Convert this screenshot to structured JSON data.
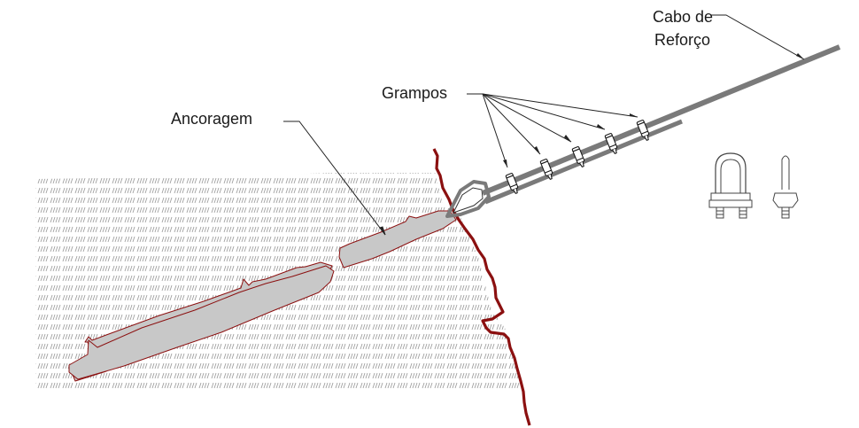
{
  "labels": {
    "anchorage": "Ancoragem",
    "clamps": "Grampos",
    "cable_line1": "Cabo de",
    "cable_line2": "Reforço"
  },
  "colors": {
    "rock_edge": "#8b1010",
    "anchor_fill": "#c8c8c8",
    "anchor_outline": "#8b1010",
    "cable": "#7a7a7a",
    "hatch": "#9a9a9a",
    "leader": "#222222"
  },
  "icons": [
    "rock-hatch-pattern",
    "wire-rope-clip-front-icon",
    "wire-rope-clip-side-icon"
  ]
}
